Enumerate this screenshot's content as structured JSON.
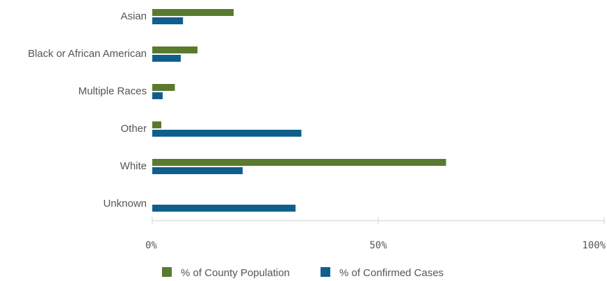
{
  "chart_data": {
    "type": "bar",
    "orientation": "horizontal",
    "categories": [
      "Asian",
      "Black or African American",
      "Multiple Races",
      "Other",
      "White",
      "Unknown"
    ],
    "series": [
      {
        "name": "% of County Population",
        "color": "#5a7a2e",
        "values": [
          18,
          10,
          5,
          2,
          65,
          0
        ]
      },
      {
        "name": "% of Confirmed Cases",
        "color": "#0f5f8c",
        "values": [
          6.8,
          6.3,
          2.3,
          33,
          20,
          31.7
        ]
      }
    ],
    "xlim": [
      0,
      100
    ],
    "x_ticks": [
      "0%",
      "50%",
      "100%"
    ],
    "x_tick_values": [
      0,
      50,
      100
    ],
    "grid": false,
    "legend_position": "bottom"
  }
}
